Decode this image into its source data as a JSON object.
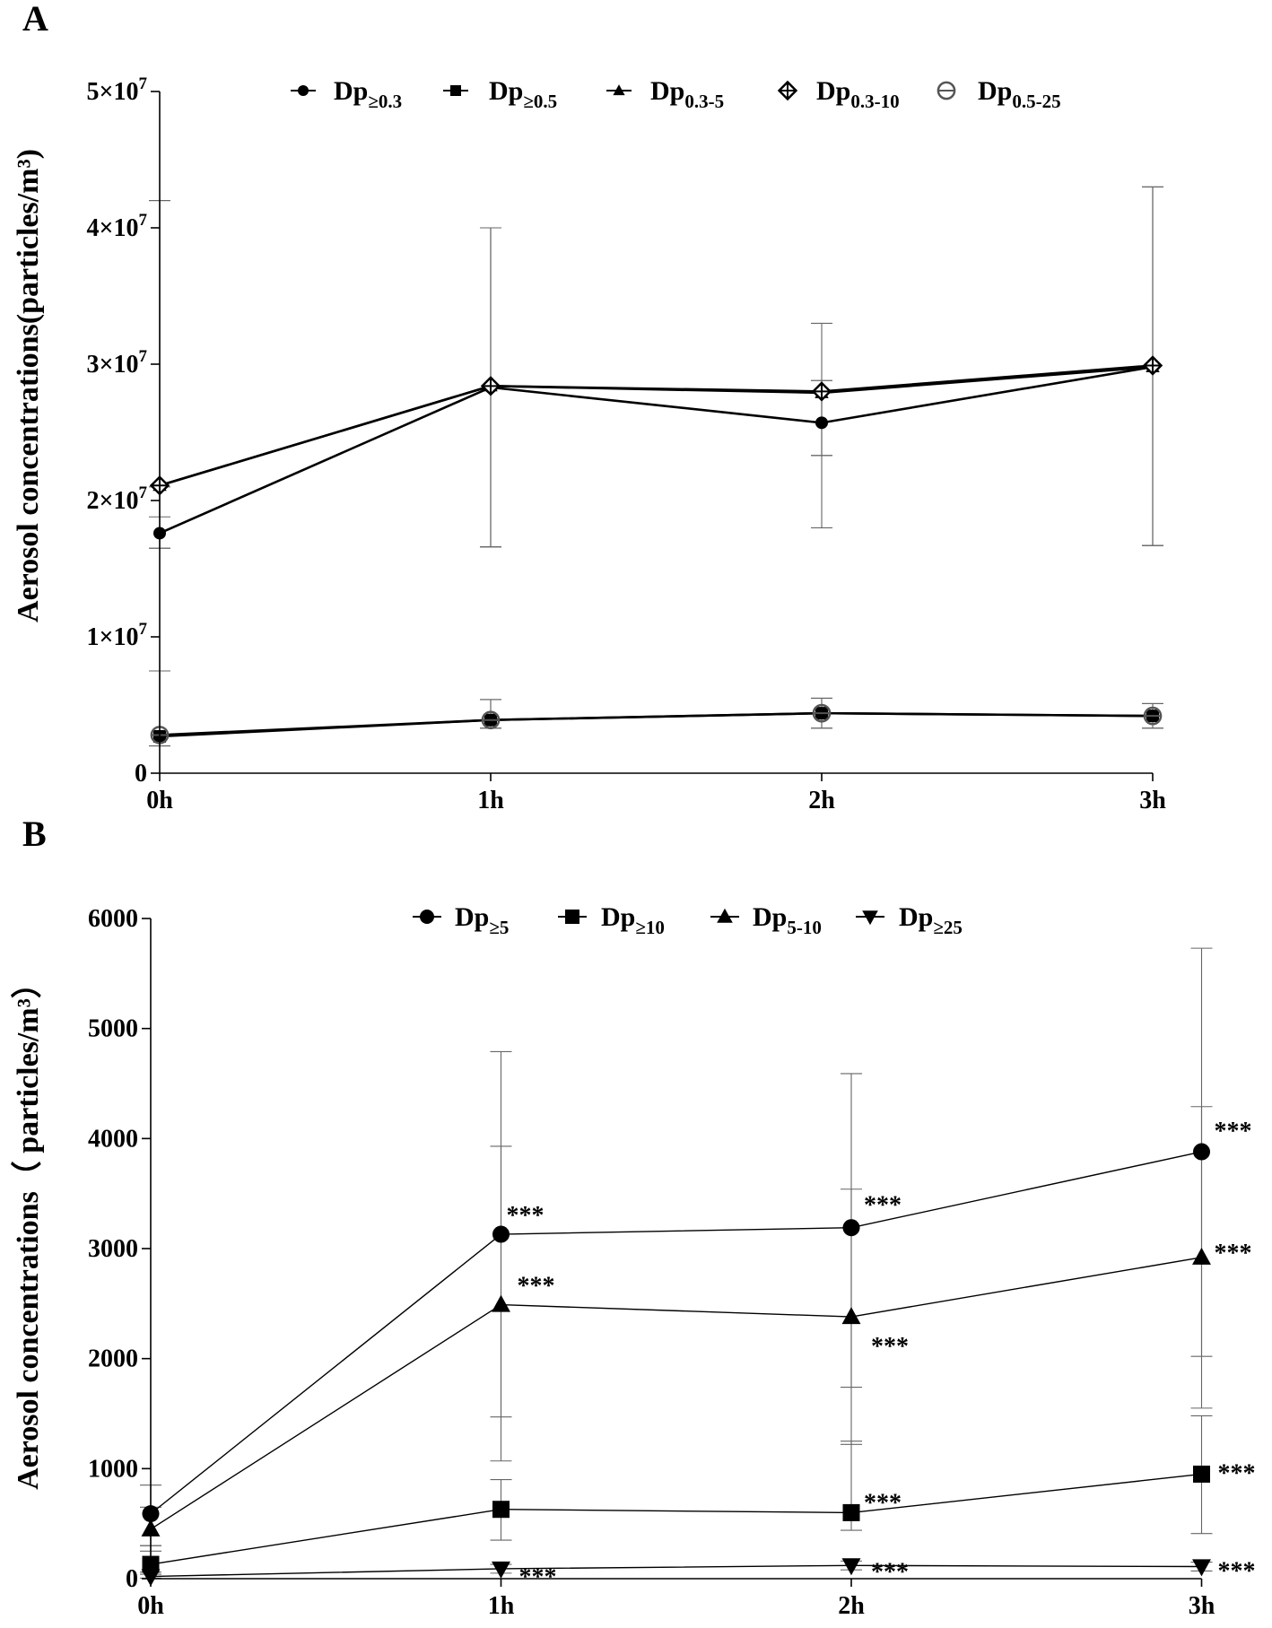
{
  "chart_data": [
    {
      "panel": "A",
      "type": "line",
      "ylabel": "Aerosol concentrations(particles/m³)",
      "xlabel": "",
      "categories": [
        "0h",
        "1h",
        "2h",
        "3h"
      ],
      "ylim": [
        0,
        50000000
      ],
      "yticks": [
        {
          "value": 0,
          "label": "0",
          "base": "",
          "exp": ""
        },
        {
          "value": 10000000,
          "label": "1×10^7",
          "base": "1×10",
          "exp": "7"
        },
        {
          "value": 20000000,
          "label": "2×10^7",
          "base": "2×10",
          "exp": "7"
        },
        {
          "value": 30000000,
          "label": "3×10^7",
          "base": "3×10",
          "exp": "7"
        },
        {
          "value": 40000000,
          "label": "4×10^7",
          "base": "4×10",
          "exp": "7"
        },
        {
          "value": 50000000,
          "label": "5×10^7",
          "base": "5×10",
          "exp": "7"
        }
      ],
      "legend_position": "top",
      "series": [
        {
          "name": "Dp≥0.3",
          "base": "Dp",
          "sub": "≥0.3",
          "marker": "circle",
          "values": [
            17600000,
            28300000,
            25700000,
            29800000
          ],
          "err_hi": [
            21000000,
            40000000,
            33000000,
            43000000
          ],
          "err_lo": [
            16500000,
            16600000,
            18000000,
            16700000
          ]
        },
        {
          "name": "Dp≥0.5",
          "base": "Dp",
          "sub": "≥0.5",
          "marker": "square",
          "values": [
            2700000,
            3900000,
            4400000,
            4200000
          ],
          "err_hi": [
            7500000,
            5400000,
            5500000,
            5100000
          ],
          "err_lo": [
            2000000,
            3300000,
            3300000,
            3300000
          ]
        },
        {
          "name": "Dp0.3-5",
          "base": "Dp",
          "sub": "0.3-5",
          "marker": "triangle",
          "values": [
            21100000,
            28400000,
            27900000,
            29800000
          ],
          "err_hi": [
            42000000,
            40000000,
            28800000,
            43000000
          ],
          "err_lo": [
            16500000,
            16600000,
            23300000,
            16700000
          ]
        },
        {
          "name": "Dp0.3-10",
          "base": "Dp",
          "sub": "0.3-10",
          "marker": "diamond-plus",
          "values": [
            21100000,
            28400000,
            28000000,
            29900000
          ],
          "err_hi": [
            42000000,
            40000000,
            28800000,
            43000000
          ],
          "err_lo": [
            18800000,
            16600000,
            23300000,
            16700000
          ]
        },
        {
          "name": "Dp0.5-25",
          "base": "Dp",
          "sub": "0.5-25",
          "marker": "circle-minus",
          "values": [
            2800000,
            3900000,
            4400000,
            4200000
          ],
          "err_hi": [
            7500000,
            5400000,
            5500000,
            5100000
          ],
          "err_lo": [
            2000000,
            3300000,
            3300000,
            3300000
          ]
        }
      ]
    },
    {
      "panel": "B",
      "type": "line",
      "ylabel": "Aerosol concentrations（ particles/m³）",
      "xlabel": "",
      "categories": [
        "0h",
        "1h",
        "2h",
        "3h"
      ],
      "ylim": [
        0,
        6000
      ],
      "yticks": [
        {
          "value": 0,
          "label": "0"
        },
        {
          "value": 1000,
          "label": "1000"
        },
        {
          "value": 2000,
          "label": "2000"
        },
        {
          "value": 3000,
          "label": "3000"
        },
        {
          "value": 4000,
          "label": "4000"
        },
        {
          "value": 5000,
          "label": "5000"
        },
        {
          "value": 6000,
          "label": "6000"
        }
      ],
      "legend_position": "top",
      "series": [
        {
          "name": "Dp≥5",
          "base": "Dp",
          "sub": "≥5",
          "marker": "circle",
          "values": [
            590,
            3130,
            3190,
            3880
          ],
          "err_hi": [
            850,
            4790,
            4590,
            5730
          ],
          "err_lo": [
            300,
            1470,
            1740,
            2020
          ],
          "stars": [
            "",
            "***",
            "***",
            "***"
          ]
        },
        {
          "name": "Dp≥10",
          "base": "Dp",
          "sub": "≥10",
          "marker": "square",
          "values": [
            130,
            630,
            600,
            950
          ],
          "err_hi": [
            300,
            900,
            1250,
            1480
          ],
          "err_lo": [
            60,
            350,
            440,
            410
          ],
          "stars": [
            "",
            "",
            "***",
            "***"
          ]
        },
        {
          "name": "Dp5-10",
          "base": "Dp",
          "sub": "5-10",
          "marker": "triangle",
          "values": [
            450,
            2490,
            2380,
            2920
          ],
          "err_hi": [
            650,
            3930,
            3540,
            4290
          ],
          "err_lo": [
            250,
            1070,
            1220,
            1550
          ],
          "stars": [
            "",
            "***",
            "***",
            "***"
          ]
        },
        {
          "name": "Dp≥25",
          "base": "Dp",
          "sub": "≥25",
          "marker": "triangle-down",
          "values": [
            20,
            90,
            120,
            110
          ],
          "err_hi": [
            40,
            130,
            160,
            150
          ],
          "err_lo": [
            5,
            50,
            80,
            70
          ],
          "stars": [
            "",
            "***",
            "***",
            "***"
          ]
        }
      ]
    }
  ]
}
